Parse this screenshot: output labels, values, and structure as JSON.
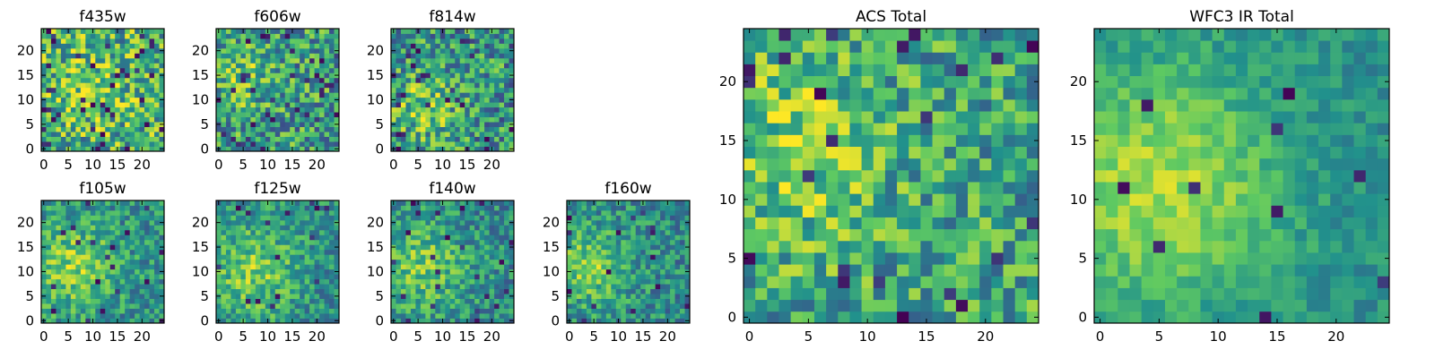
{
  "colormap": {
    "name": "viridis",
    "stops": [
      "#440154",
      "#3b528b",
      "#21918c",
      "#5ec962",
      "#fde725"
    ]
  },
  "chart_data": [
    {
      "id": "f435w",
      "type": "heatmap",
      "title": "f435w",
      "grid": 25,
      "x_ticks": [
        0,
        5,
        10,
        15,
        20
      ],
      "y_ticks": [
        0,
        5,
        10,
        15,
        20
      ],
      "xlim": [
        -0.5,
        24.5
      ],
      "ylim": [
        -0.5,
        24.5
      ],
      "pattern": {
        "seed": 11,
        "base": 0.64,
        "noise": 0.34,
        "blobs": [
          {
            "cx": 10,
            "cy": 13,
            "r": 7,
            "a": 0.1
          }
        ],
        "dark": 0.06
      }
    },
    {
      "id": "f606w",
      "type": "heatmap",
      "title": "f606w",
      "grid": 25,
      "x_ticks": [
        0,
        5,
        10,
        15,
        20
      ],
      "y_ticks": [
        0,
        5,
        10,
        15,
        20
      ],
      "xlim": [
        -0.5,
        24.5
      ],
      "ylim": [
        -0.5,
        24.5
      ],
      "pattern": {
        "seed": 23,
        "base": 0.55,
        "noise": 0.32,
        "blobs": [
          {
            "cx": 5,
            "cy": 15,
            "r": 6,
            "a": 0.22
          }
        ],
        "dark": 0.05
      }
    },
    {
      "id": "f814w",
      "type": "heatmap",
      "title": "f814w",
      "grid": 25,
      "x_ticks": [
        0,
        5,
        10,
        15,
        20
      ],
      "y_ticks": [
        0,
        5,
        10,
        15,
        20
      ],
      "xlim": [
        -0.5,
        24.5
      ],
      "ylim": [
        -0.5,
        24.5
      ],
      "pattern": {
        "seed": 37,
        "base": 0.52,
        "noise": 0.32,
        "blobs": [
          {
            "cx": 6,
            "cy": 9,
            "r": 7,
            "a": 0.25
          }
        ],
        "dark": 0.05
      }
    },
    {
      "id": "f105w",
      "type": "heatmap",
      "title": "f105w",
      "grid": 25,
      "x_ticks": [
        0,
        5,
        10,
        15,
        20
      ],
      "y_ticks": [
        0,
        5,
        10,
        15,
        20
      ],
      "xlim": [
        -0.5,
        24.5
      ],
      "ylim": [
        -0.5,
        24.5
      ],
      "pattern": {
        "seed": 41,
        "base": 0.5,
        "noise": 0.22,
        "blobs": [
          {
            "cx": 6,
            "cy": 11,
            "r": 9,
            "a": 0.3
          }
        ],
        "dark": 0.03
      }
    },
    {
      "id": "f125w",
      "type": "heatmap",
      "title": "f125w",
      "grid": 25,
      "x_ticks": [
        0,
        5,
        10,
        15,
        20
      ],
      "y_ticks": [
        0,
        5,
        10,
        15,
        20
      ],
      "xlim": [
        -0.5,
        24.5
      ],
      "ylim": [
        -0.5,
        24.5
      ],
      "pattern": {
        "seed": 53,
        "base": 0.5,
        "noise": 0.22,
        "blobs": [
          {
            "cx": 7,
            "cy": 10,
            "r": 9,
            "a": 0.28
          }
        ],
        "dark": 0.03
      }
    },
    {
      "id": "f140w",
      "type": "heatmap",
      "title": "f140w",
      "grid": 25,
      "x_ticks": [
        0,
        5,
        10,
        15,
        20
      ],
      "y_ticks": [
        0,
        5,
        10,
        15,
        20
      ],
      "xlim": [
        -0.5,
        24.5
      ],
      "ylim": [
        -0.5,
        24.5
      ],
      "pattern": {
        "seed": 67,
        "base": 0.48,
        "noise": 0.22,
        "blobs": [
          {
            "cx": 6,
            "cy": 11,
            "r": 9,
            "a": 0.28
          }
        ],
        "dark": 0.03
      }
    },
    {
      "id": "f160w",
      "type": "heatmap",
      "title": "f160w",
      "grid": 25,
      "x_ticks": [
        0,
        5,
        10,
        15,
        20
      ],
      "y_ticks": [
        0,
        5,
        10,
        15,
        20
      ],
      "xlim": [
        -0.5,
        24.5
      ],
      "ylim": [
        -0.5,
        24.5
      ],
      "pattern": {
        "seed": 79,
        "base": 0.48,
        "noise": 0.22,
        "blobs": [
          {
            "cx": 4,
            "cy": 11,
            "r": 8,
            "a": 0.3
          }
        ],
        "dark": 0.03
      }
    },
    {
      "id": "acs_total",
      "type": "heatmap",
      "title": "ACS Total",
      "grid": 25,
      "x_ticks": [
        0,
        5,
        10,
        15,
        20
      ],
      "y_ticks": [
        0,
        5,
        10,
        15,
        20
      ],
      "xlim": [
        -0.5,
        24.5
      ],
      "ylim": [
        -0.5,
        24.5
      ],
      "pattern": {
        "seed": 97,
        "base": 0.58,
        "noise": 0.28,
        "blobs": [
          {
            "cx": 4,
            "cy": 14,
            "r": 8,
            "a": 0.22
          }
        ],
        "dark": 0.04
      }
    },
    {
      "id": "wfc3_ir_total",
      "type": "heatmap",
      "title": "WFC3 IR Total",
      "grid": 25,
      "x_ticks": [
        0,
        5,
        10,
        15,
        20
      ],
      "y_ticks": [
        0,
        5,
        10,
        15,
        20
      ],
      "xlim": [
        -0.5,
        24.5
      ],
      "ylim": [
        -0.5,
        24.5
      ],
      "pattern": {
        "seed": 131,
        "base": 0.5,
        "noise": 0.12,
        "blobs": [
          {
            "cx": 5,
            "cy": 11,
            "r": 10,
            "a": 0.38
          }
        ],
        "dark": 0.02
      }
    }
  ]
}
